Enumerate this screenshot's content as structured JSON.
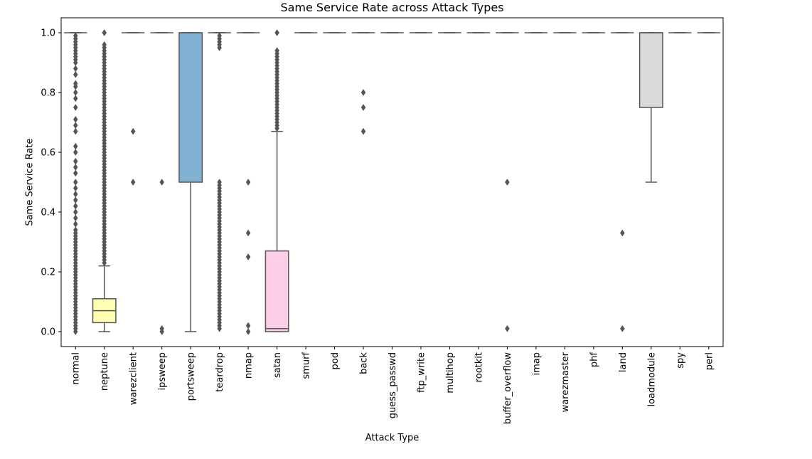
{
  "chart_data": {
    "type": "box",
    "title": "Same Service Rate across Attack Types",
    "xlabel": "Attack Type",
    "ylabel": "Same Service Rate",
    "ylim": [
      -0.05,
      1.05
    ],
    "yticks": [
      0.0,
      0.2,
      0.4,
      0.6,
      0.8,
      1.0
    ],
    "ytick_labels": [
      "0.0",
      "0.2",
      "0.4",
      "0.6",
      "0.8",
      "1.0"
    ],
    "grid": false,
    "legend": "none",
    "categories": [
      "normal",
      "neptune",
      "warezclient",
      "ipsweep",
      "portsweep",
      "teardrop",
      "nmap",
      "satan",
      "smurf",
      "pod",
      "back",
      "guess_passwd",
      "ftp_write",
      "multihop",
      "rootkit",
      "buffer_overflow",
      "imap",
      "warezmaster",
      "phf",
      "land",
      "loadmodule",
      "spy",
      "perl"
    ],
    "boxes": [
      {
        "category": "normal",
        "q1": 1.0,
        "median": 1.0,
        "q3": 1.0,
        "whisker_low": 1.0,
        "whisker_high": 1.0,
        "color": "#8dd3c7",
        "outliers": [
          0.0,
          0.01,
          0.02,
          0.03,
          0.04,
          0.05,
          0.06,
          0.07,
          0.08,
          0.09,
          0.1,
          0.11,
          0.12,
          0.13,
          0.14,
          0.15,
          0.16,
          0.17,
          0.18,
          0.19,
          0.2,
          0.21,
          0.22,
          0.23,
          0.24,
          0.25,
          0.26,
          0.27,
          0.28,
          0.29,
          0.3,
          0.31,
          0.32,
          0.33,
          0.34,
          0.36,
          0.38,
          0.4,
          0.42,
          0.44,
          0.46,
          0.48,
          0.5,
          0.53,
          0.55,
          0.57,
          0.6,
          0.62,
          0.67,
          0.69,
          0.71,
          0.75,
          0.78,
          0.8,
          0.82,
          0.83,
          0.86,
          0.88,
          0.9,
          0.91,
          0.92,
          0.93,
          0.94,
          0.95,
          0.96,
          0.97,
          0.98,
          0.99
        ]
      },
      {
        "category": "neptune",
        "q1": 0.03,
        "median": 0.07,
        "q3": 0.11,
        "whisker_low": 0.0,
        "whisker_high": 0.22,
        "color": "#ffffb3",
        "outliers": [
          0.23,
          0.24,
          0.25,
          0.26,
          0.27,
          0.28,
          0.29,
          0.3,
          0.31,
          0.32,
          0.33,
          0.34,
          0.35,
          0.36,
          0.37,
          0.38,
          0.39,
          0.4,
          0.41,
          0.42,
          0.43,
          0.44,
          0.45,
          0.46,
          0.47,
          0.48,
          0.49,
          0.5,
          0.51,
          0.52,
          0.53,
          0.54,
          0.55,
          0.56,
          0.57,
          0.58,
          0.59,
          0.6,
          0.61,
          0.62,
          0.63,
          0.64,
          0.65,
          0.66,
          0.67,
          0.68,
          0.69,
          0.7,
          0.71,
          0.72,
          0.73,
          0.74,
          0.75,
          0.76,
          0.77,
          0.78,
          0.79,
          0.8,
          0.81,
          0.82,
          0.83,
          0.84,
          0.85,
          0.86,
          0.87,
          0.88,
          0.89,
          0.9,
          0.91,
          0.92,
          0.93,
          0.94,
          0.95,
          0.96,
          1.0
        ]
      },
      {
        "category": "warezclient",
        "q1": 1.0,
        "median": 1.0,
        "q3": 1.0,
        "whisker_low": 1.0,
        "whisker_high": 1.0,
        "color": "#bebada",
        "outliers": [
          0.5,
          0.67
        ]
      },
      {
        "category": "ipsweep",
        "q1": 1.0,
        "median": 1.0,
        "q3": 1.0,
        "whisker_low": 1.0,
        "whisker_high": 1.0,
        "color": "#fb8072",
        "outliers": [
          0.0,
          0.01,
          0.5
        ]
      },
      {
        "category": "portsweep",
        "q1": 0.5,
        "median": 1.0,
        "q3": 1.0,
        "whisker_low": 0.0,
        "whisker_high": 1.0,
        "color": "#80b1d3",
        "outliers": []
      },
      {
        "category": "teardrop",
        "q1": 1.0,
        "median": 1.0,
        "q3": 1.0,
        "whisker_low": 1.0,
        "whisker_high": 1.0,
        "color": "#fdb462",
        "outliers": [
          0.01,
          0.02,
          0.03,
          0.04,
          0.05,
          0.06,
          0.07,
          0.08,
          0.09,
          0.1,
          0.11,
          0.12,
          0.13,
          0.14,
          0.15,
          0.16,
          0.17,
          0.18,
          0.19,
          0.2,
          0.21,
          0.22,
          0.23,
          0.24,
          0.25,
          0.26,
          0.27,
          0.28,
          0.29,
          0.3,
          0.31,
          0.32,
          0.33,
          0.34,
          0.35,
          0.36,
          0.37,
          0.38,
          0.39,
          0.4,
          0.41,
          0.42,
          0.43,
          0.44,
          0.45,
          0.46,
          0.47,
          0.48,
          0.49,
          0.5,
          0.95,
          0.96,
          0.97,
          0.98,
          0.99
        ]
      },
      {
        "category": "nmap",
        "q1": 1.0,
        "median": 1.0,
        "q3": 1.0,
        "whisker_low": 1.0,
        "whisker_high": 1.0,
        "color": "#b3de69",
        "outliers": [
          0.0,
          0.02,
          0.25,
          0.33,
          0.5
        ]
      },
      {
        "category": "satan",
        "q1": 0.0,
        "median": 0.01,
        "q3": 0.27,
        "whisker_low": 0.0,
        "whisker_high": 0.67,
        "color": "#fccde5",
        "outliers": [
          0.68,
          0.69,
          0.7,
          0.71,
          0.72,
          0.73,
          0.74,
          0.75,
          0.76,
          0.77,
          0.78,
          0.79,
          0.8,
          0.81,
          0.82,
          0.83,
          0.84,
          0.85,
          0.86,
          0.87,
          0.88,
          0.89,
          0.9,
          0.91,
          0.92,
          0.93,
          0.94,
          1.0
        ]
      },
      {
        "category": "smurf",
        "q1": 1.0,
        "median": 1.0,
        "q3": 1.0,
        "whisker_low": 1.0,
        "whisker_high": 1.0,
        "color": "#d9d9d9",
        "outliers": []
      },
      {
        "category": "pod",
        "q1": 1.0,
        "median": 1.0,
        "q3": 1.0,
        "whisker_low": 1.0,
        "whisker_high": 1.0,
        "color": "#bc80bd",
        "outliers": []
      },
      {
        "category": "back",
        "q1": 1.0,
        "median": 1.0,
        "q3": 1.0,
        "whisker_low": 1.0,
        "whisker_high": 1.0,
        "color": "#ccebc5",
        "outliers": [
          0.67,
          0.75,
          0.8
        ]
      },
      {
        "category": "guess_passwd",
        "q1": 1.0,
        "median": 1.0,
        "q3": 1.0,
        "whisker_low": 1.0,
        "whisker_high": 1.0,
        "color": "#ffed6f",
        "outliers": []
      },
      {
        "category": "ftp_write",
        "q1": 1.0,
        "median": 1.0,
        "q3": 1.0,
        "whisker_low": 1.0,
        "whisker_high": 1.0,
        "color": "#8dd3c7",
        "outliers": []
      },
      {
        "category": "multihop",
        "q1": 1.0,
        "median": 1.0,
        "q3": 1.0,
        "whisker_low": 1.0,
        "whisker_high": 1.0,
        "color": "#ffffb3",
        "outliers": []
      },
      {
        "category": "rootkit",
        "q1": 1.0,
        "median": 1.0,
        "q3": 1.0,
        "whisker_low": 1.0,
        "whisker_high": 1.0,
        "color": "#bebada",
        "outliers": []
      },
      {
        "category": "buffer_overflow",
        "q1": 1.0,
        "median": 1.0,
        "q3": 1.0,
        "whisker_low": 1.0,
        "whisker_high": 1.0,
        "color": "#fb8072",
        "outliers": [
          0.01,
          0.5
        ]
      },
      {
        "category": "imap",
        "q1": 1.0,
        "median": 1.0,
        "q3": 1.0,
        "whisker_low": 1.0,
        "whisker_high": 1.0,
        "color": "#80b1d3",
        "outliers": []
      },
      {
        "category": "warezmaster",
        "q1": 1.0,
        "median": 1.0,
        "q3": 1.0,
        "whisker_low": 1.0,
        "whisker_high": 1.0,
        "color": "#fdb462",
        "outliers": []
      },
      {
        "category": "phf",
        "q1": 1.0,
        "median": 1.0,
        "q3": 1.0,
        "whisker_low": 1.0,
        "whisker_high": 1.0,
        "color": "#b3de69",
        "outliers": []
      },
      {
        "category": "land",
        "q1": 1.0,
        "median": 1.0,
        "q3": 1.0,
        "whisker_low": 1.0,
        "whisker_high": 1.0,
        "color": "#fccde5",
        "outliers": [
          0.01,
          0.33
        ]
      },
      {
        "category": "loadmodule",
        "q1": 0.75,
        "median": 1.0,
        "q3": 1.0,
        "whisker_low": 0.5,
        "whisker_high": 1.0,
        "color": "#d9d9d9",
        "outliers": []
      },
      {
        "category": "spy",
        "q1": 1.0,
        "median": 1.0,
        "q3": 1.0,
        "whisker_low": 1.0,
        "whisker_high": 1.0,
        "color": "#bc80bd",
        "outliers": []
      },
      {
        "category": "perl",
        "q1": 1.0,
        "median": 1.0,
        "q3": 1.0,
        "whisker_low": 1.0,
        "whisker_high": 1.0,
        "color": "#ccebc5",
        "outliers": []
      }
    ],
    "line_color": "#555555"
  }
}
